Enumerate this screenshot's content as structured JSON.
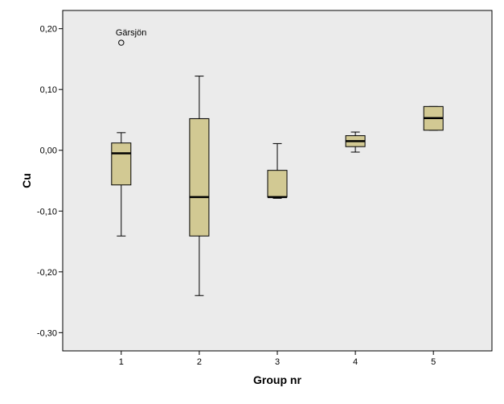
{
  "chart_data": {
    "type": "boxplot",
    "title": "",
    "xlabel": "Group nr",
    "ylabel": "Cu",
    "ylim": [
      -0.33,
      0.23
    ],
    "yticks": [
      {
        "value": 0.2,
        "label": "0,20"
      },
      {
        "value": 0.1,
        "label": "0,10"
      },
      {
        "value": 0.0,
        "label": "0,00"
      },
      {
        "value": -0.1,
        "label": "-0,10"
      },
      {
        "value": -0.2,
        "label": "-0,20"
      },
      {
        "value": -0.3,
        "label": "-0,30"
      }
    ],
    "categories": [
      "1",
      "2",
      "3",
      "4",
      "5"
    ],
    "boxes": [
      {
        "category": "1",
        "whisker_low": -0.141,
        "q1": -0.057,
        "median": -0.005,
        "q3": 0.012,
        "whisker_high": 0.029
      },
      {
        "category": "2",
        "whisker_low": -0.239,
        "q1": -0.141,
        "median": -0.077,
        "q3": 0.052,
        "whisker_high": 0.122
      },
      {
        "category": "3",
        "whisker_low": -0.079,
        "q1": -0.077,
        "median": -0.077,
        "q3": -0.033,
        "whisker_high": 0.011
      },
      {
        "category": "4",
        "whisker_low": -0.003,
        "q1": 0.006,
        "median": 0.015,
        "q3": 0.024,
        "whisker_high": 0.03
      },
      {
        "category": "5",
        "whisker_low": 0.033,
        "q1": 0.033,
        "median": 0.053,
        "q3": 0.072,
        "whisker_high": 0.072
      }
    ],
    "outliers": [
      {
        "category": "1",
        "value": 0.177,
        "label": "Gärsjön"
      }
    ],
    "colors": {
      "plot_background": "#ebebeb",
      "box_fill": "#d2c993",
      "stroke": "#000000"
    },
    "grid": false,
    "legend": "none"
  }
}
